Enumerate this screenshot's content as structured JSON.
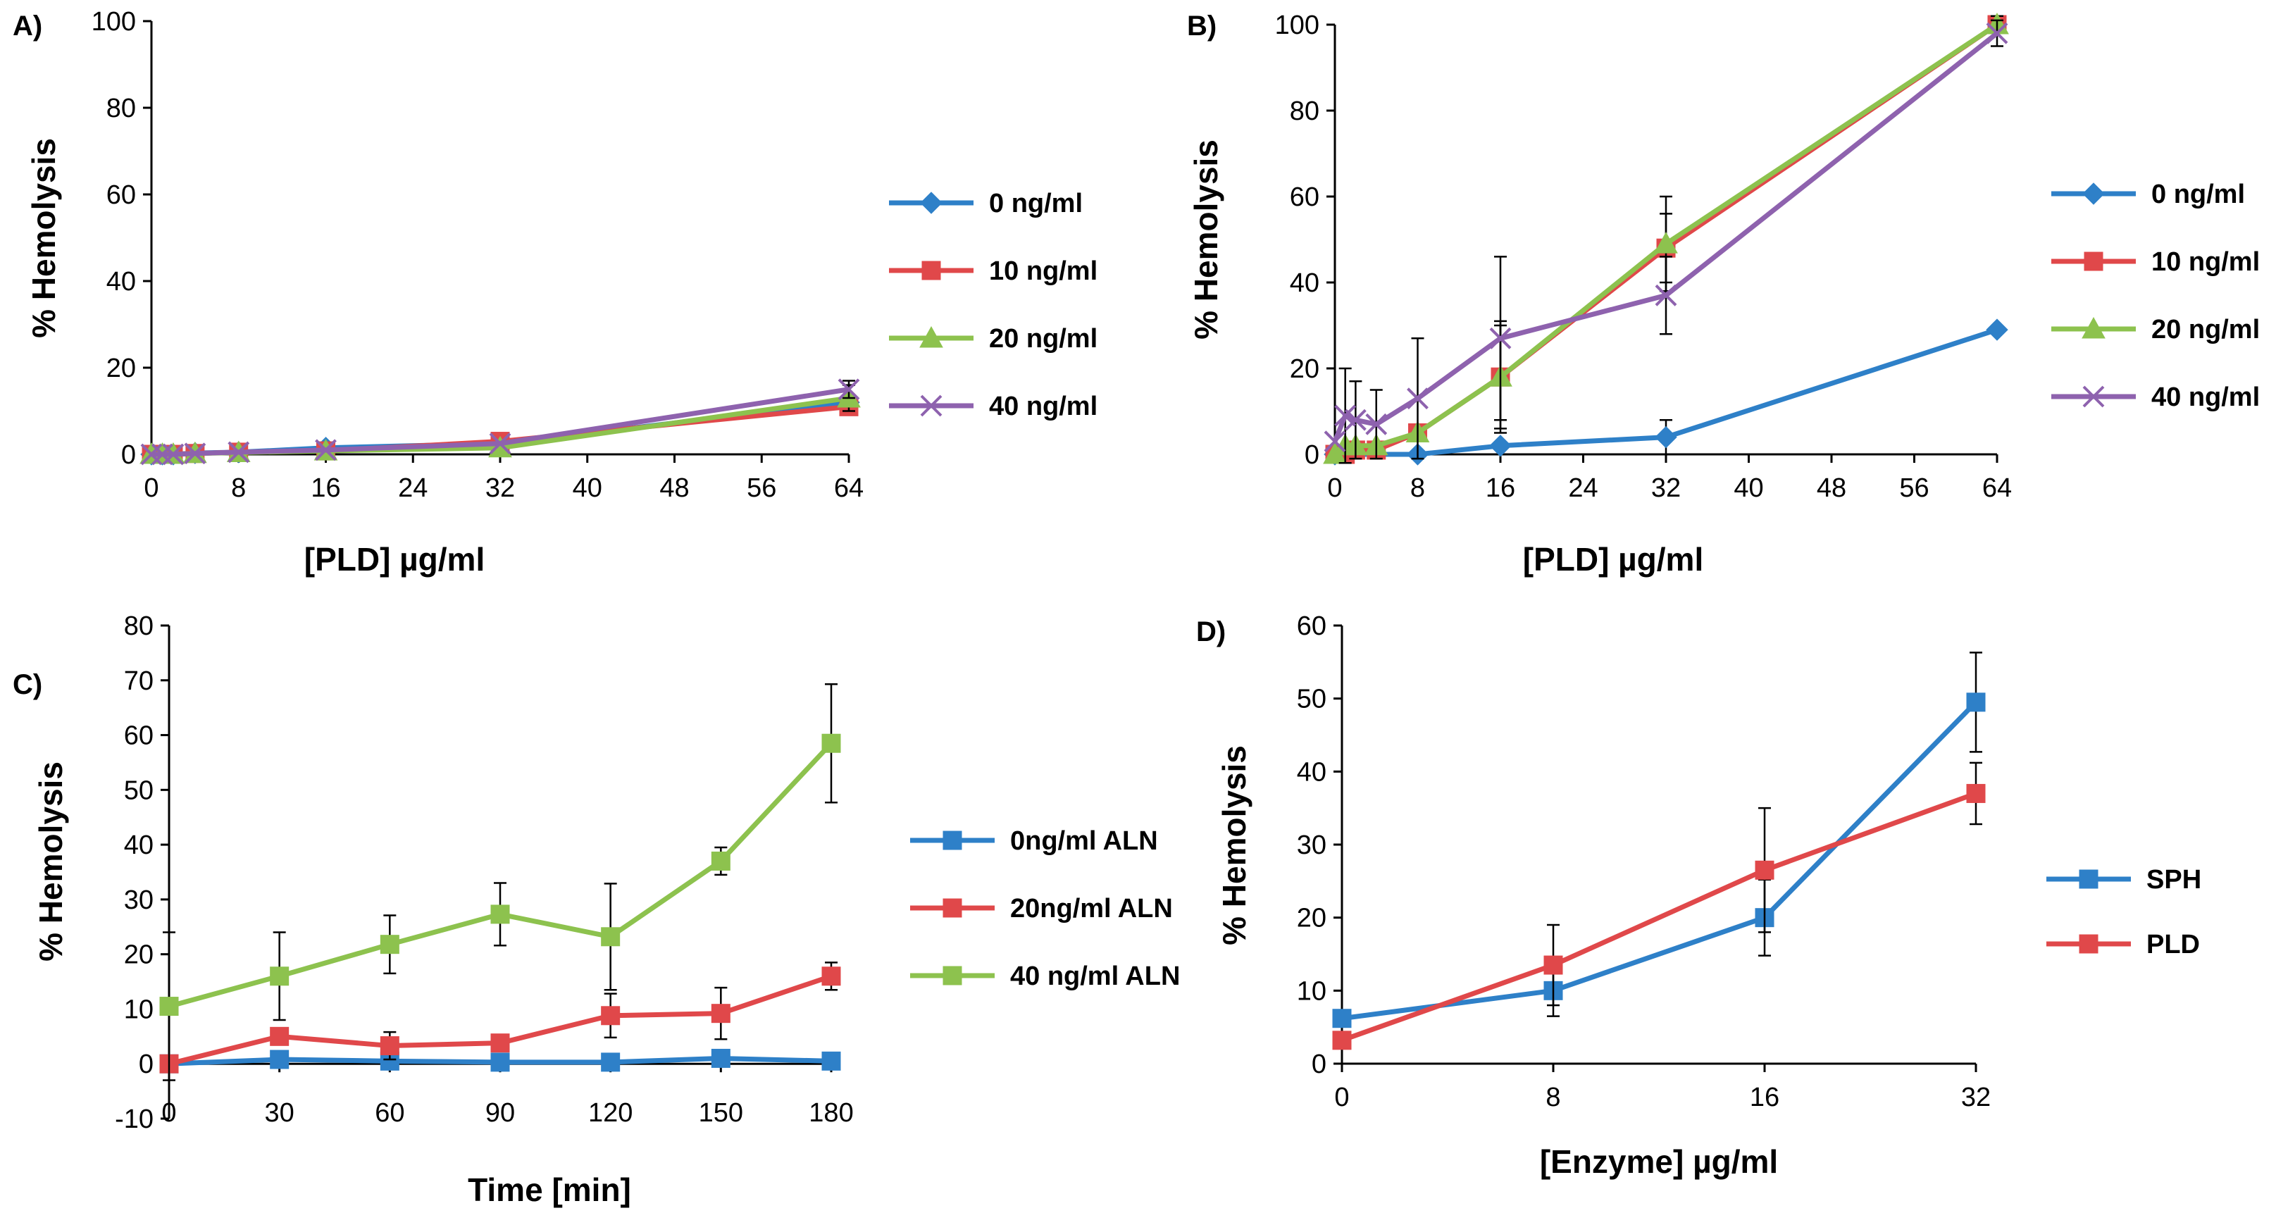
{
  "chart_data": [
    {
      "panel": "A)",
      "type": "line",
      "xlabel": "[PLD] µg/ml",
      "ylabel": "% Hemolysis",
      "xlim": [
        0,
        64
      ],
      "ylim": [
        0,
        100
      ],
      "x_ticks": [
        "0",
        "8",
        "16",
        "24",
        "32",
        "40",
        "48",
        "56",
        "64"
      ],
      "y_ticks": [
        "0",
        "20",
        "40",
        "60",
        "80",
        "100"
      ],
      "legend_position": "right",
      "series": [
        {
          "name": "0 ng/ml",
          "color": "#2E80C8",
          "marker": "diamond",
          "x": [
            0,
            1,
            2,
            4,
            8,
            16,
            32,
            64
          ],
          "y": [
            0,
            0,
            0,
            0.3,
            0.5,
            1.5,
            2.5,
            12
          ],
          "err": [
            0,
            0,
            0,
            0,
            0,
            0,
            0,
            0
          ]
        },
        {
          "name": "10 ng/ml",
          "color": "#E0484A",
          "marker": "square",
          "x": [
            0,
            1,
            2,
            4,
            8,
            16,
            32,
            64
          ],
          "y": [
            0,
            0,
            0,
            0.2,
            0.5,
            0.8,
            3,
            11
          ],
          "err": [
            0,
            0,
            0,
            0,
            0,
            0,
            0,
            0
          ]
        },
        {
          "name": "20 ng/ml",
          "color": "#8DC24E",
          "marker": "triangle",
          "x": [
            0,
            1,
            2,
            4,
            8,
            16,
            32,
            64
          ],
          "y": [
            0,
            0,
            0,
            0.2,
            0.4,
            0.8,
            1.5,
            13
          ],
          "err": [
            0,
            0,
            0,
            0,
            0,
            0,
            0,
            3
          ]
        },
        {
          "name": "40 ng/ml",
          "color": "#8E62AE",
          "marker": "x",
          "x": [
            0,
            1,
            2,
            4,
            8,
            16,
            32,
            64
          ],
          "y": [
            0,
            0,
            0,
            0.2,
            0.5,
            1,
            2.5,
            15
          ],
          "err": [
            0,
            0,
            0,
            0,
            0,
            0,
            0,
            2
          ]
        }
      ]
    },
    {
      "panel": "B)",
      "type": "line",
      "xlabel": "[PLD] µg/ml",
      "ylabel": "% Hemolysis",
      "xlim": [
        0,
        64
      ],
      "ylim": [
        0,
        100
      ],
      "x_ticks": [
        "0",
        "8",
        "16",
        "24",
        "32",
        "40",
        "48",
        "56",
        "64"
      ],
      "y_ticks": [
        "0",
        "20",
        "40",
        "60",
        "80",
        "100"
      ],
      "legend_position": "right",
      "series": [
        {
          "name": "0 ng/ml",
          "color": "#2E80C8",
          "marker": "diamond",
          "x": [
            0,
            8,
            16,
            32,
            64
          ],
          "y": [
            0,
            0,
            2,
            4,
            29
          ],
          "err": [
            0,
            0,
            0,
            4,
            0
          ]
        },
        {
          "name": "10 ng/ml",
          "color": "#E0484A",
          "marker": "square",
          "x": [
            0,
            1,
            2,
            4,
            8,
            16,
            32,
            64
          ],
          "y": [
            0,
            0,
            1,
            1,
            5,
            18,
            48,
            100
          ],
          "err": [
            0,
            0,
            0,
            0,
            0,
            12,
            8,
            2
          ]
        },
        {
          "name": "20 ng/ml",
          "color": "#8DC24E",
          "marker": "triangle",
          "x": [
            0,
            1,
            2,
            4,
            8,
            16,
            32,
            64
          ],
          "y": [
            0,
            2,
            2,
            2,
            5,
            18,
            49,
            100
          ],
          "err": [
            0,
            0,
            0,
            0,
            0,
            13,
            11,
            2
          ]
        },
        {
          "name": "40 ng/ml",
          "color": "#8E62AE",
          "marker": "x",
          "x": [
            0,
            1,
            2,
            4,
            8,
            16,
            32,
            64
          ],
          "y": [
            3,
            9,
            8,
            7,
            13,
            27,
            37,
            98
          ],
          "err": [
            0,
            11,
            9,
            8,
            14,
            19,
            9,
            3
          ]
        }
      ]
    },
    {
      "panel": "C)",
      "type": "line",
      "xlabel": "Time [min]",
      "ylabel": "% Hemolysis",
      "xlim": [
        0,
        180
      ],
      "ylim": [
        -10,
        80
      ],
      "x_ticks": [
        "0",
        "30",
        "60",
        "90",
        "120",
        "150",
        "180"
      ],
      "y_ticks": [
        "-10",
        "0",
        "10",
        "20",
        "30",
        "40",
        "50",
        "60",
        "70",
        "80"
      ],
      "legend_position": "right",
      "series": [
        {
          "name": "0ng/ml ALN",
          "color": "#2E80C8",
          "marker": "square",
          "x": [
            0,
            30,
            60,
            90,
            120,
            150,
            180
          ],
          "y": [
            0,
            0.8,
            0.5,
            0.3,
            0.3,
            1,
            0.5
          ],
          "err": [
            0,
            0,
            0,
            0,
            0,
            0,
            0
          ]
        },
        {
          "name": "20ng/ml ALN",
          "color": "#E0484A",
          "marker": "square",
          "x": [
            0,
            30,
            60,
            90,
            120,
            150,
            180
          ],
          "y": [
            0,
            5,
            3.3,
            3.8,
            8.8,
            9.2,
            16
          ],
          "err": [
            0,
            0,
            2.5,
            0,
            4,
            4.7,
            2.5
          ]
        },
        {
          "name": "40 ng/ml ALN",
          "color": "#8DC24E",
          "marker": "square",
          "x": [
            0,
            30,
            60,
            90,
            120,
            150,
            180
          ],
          "y": [
            10.5,
            16,
            21.8,
            27.3,
            23.2,
            37,
            58.5
          ],
          "err": [
            13.5,
            8,
            5.3,
            5.7,
            9.7,
            2.5,
            10.8
          ]
        }
      ]
    },
    {
      "panel": "D)",
      "type": "line",
      "xlabel": "[Enzyme] µg/ml",
      "ylabel": "% Hemolysis",
      "x_categorical": true,
      "ylim": [
        0,
        60
      ],
      "x_ticks": [
        "0",
        "8",
        "16",
        "32"
      ],
      "y_ticks": [
        "0",
        "10",
        "20",
        "30",
        "40",
        "50",
        "60"
      ],
      "legend_position": "right",
      "series": [
        {
          "name": "SPH",
          "color": "#2E80C8",
          "marker": "square",
          "x": [
            0,
            8,
            16,
            32
          ],
          "y": [
            6.2,
            10,
            20,
            49.5
          ],
          "err": [
            0,
            3.5,
            5.2,
            6.8
          ]
        },
        {
          "name": "PLD",
          "color": "#E0484A",
          "marker": "square",
          "x": [
            0,
            8,
            16,
            32
          ],
          "y": [
            3.2,
            13.5,
            26.5,
            37
          ],
          "err": [
            0,
            5.5,
            8.5,
            4.2
          ]
        }
      ]
    }
  ]
}
